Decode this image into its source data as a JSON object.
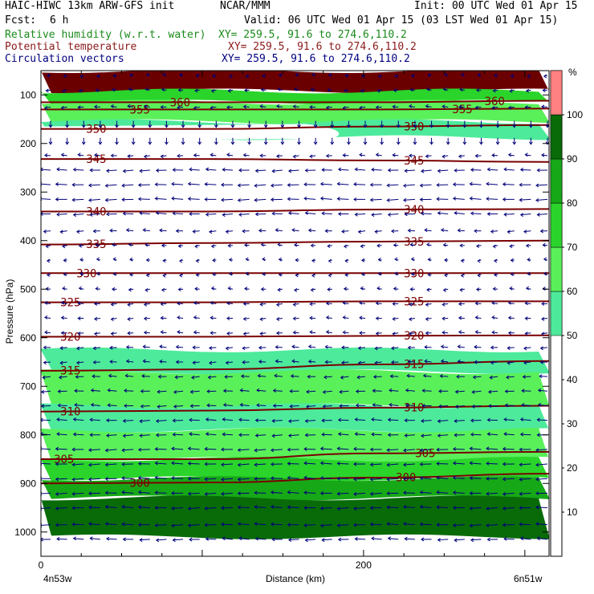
{
  "header": {
    "title_left": "HAIC-HIWC 13km ARW-GFS init",
    "center_org": "NCAR/MMM",
    "init": "Init: 00 UTC Wed 01 Apr 15",
    "fcst_label": "Fcst:",
    "fcst_value": "6 h",
    "valid": "Valid: 06 UTC Wed 01 Apr 15 (03 LST Wed 01 Apr 15)",
    "field1": "Relative humidity (w.r.t. water)",
    "field1_xy": "XY= 259.5, 91.6 to 274.6,110.2",
    "field2": "Potential temperature",
    "field2_xy": "XY= 259.5, 91.6 to 274.6,110.2",
    "field3": "Circulation vectors",
    "field3_xy": "XY= 259.5, 91.6 to 274.6,110.2"
  },
  "colors": {
    "field1": "#1a8a1a",
    "field2": "#8b1a1a",
    "field3": "#000080",
    "rh_50": "#4dea9b",
    "rh_60": "#5af05a",
    "rh_70": "#2ad42a",
    "rh_80": "#17a817",
    "rh_90": "#086b08",
    "rh_100": "#6b0000",
    "rh_over": "#ff8080",
    "theta": "#7a0000",
    "vectors": "#00007a"
  },
  "chart_data": {
    "type": "heatmap",
    "xlabel": "Distance (km)",
    "ylabel": "Pressure (hPa)",
    "xlim": [
      0,
      315
    ],
    "ylim": [
      1050,
      50
    ],
    "x_ticks": [
      0,
      200
    ],
    "y_ticks": [
      100,
      200,
      300,
      400,
      500,
      600,
      700,
      800,
      900,
      1000
    ],
    "x_left_label": "4n53w",
    "x_right_label": "6n51w",
    "colorbar": {
      "unit": "%",
      "ticks": [
        10,
        20,
        30,
        40,
        50,
        60,
        70,
        80,
        90,
        100
      ],
      "levels": [
        50,
        60,
        70,
        80,
        90,
        100
      ]
    },
    "rh_bands": [
      {
        "level": 100,
        "p_top": 50,
        "p_bot": 92
      },
      {
        "level": 70,
        "p_top": 92,
        "p_bot": 115
      },
      {
        "level": 60,
        "p_top": 115,
        "p_bot": 155
      },
      {
        "level": 50,
        "p_top": 155,
        "p_bot": 188
      },
      {
        "level": 50,
        "p_top": 625,
        "p_bot": 670
      },
      {
        "level": 60,
        "p_top": 670,
        "p_bot": 740
      },
      {
        "level": 50,
        "p_top": 740,
        "p_bot": 790
      },
      {
        "level": 60,
        "p_top": 790,
        "p_bot": 850
      },
      {
        "level": 70,
        "p_top": 850,
        "p_bot": 890
      },
      {
        "level": 80,
        "p_top": 890,
        "p_bot": 930
      },
      {
        "level": 90,
        "p_top": 930,
        "p_bot": 1010
      }
    ],
    "theta_contours": [
      {
        "value": 300,
        "y": [
          900,
          898,
          888,
          880
        ],
        "label": "300",
        "label_x": [
          55,
          220
        ]
      },
      {
        "value": 305,
        "y": [
          850,
          850,
          838,
          835
        ],
        "label": "305",
        "label_x": [
          8,
          232
        ]
      },
      {
        "value": 310,
        "y": [
          752,
          750,
          744,
          740
        ],
        "label": "310",
        "label_x": [
          12,
          225
        ]
      },
      {
        "value": 315,
        "y": [
          668,
          665,
          655,
          648
        ],
        "label": "315",
        "label_x": [
          12,
          225
        ]
      },
      {
        "value": 320,
        "y": [
          598,
          598,
          596,
          595
        ],
        "label": "320",
        "label_x": [
          12,
          225
        ]
      },
      {
        "value": 325,
        "y": [
          527,
          527,
          525,
          525
        ],
        "label": "325",
        "label_x": [
          12,
          225
        ]
      },
      {
        "value": 330,
        "y": [
          467,
          467,
          467,
          467
        ],
        "label": "330",
        "label_x": [
          22,
          225
        ]
      },
      {
        "value": 335,
        "y": [
          408,
          405,
          402,
          400
        ],
        "label": "335",
        "label_x": [
          28,
          225
        ]
      },
      {
        "value": 340,
        "y": [
          340,
          340,
          336,
          335
        ],
        "label": "340",
        "label_x": [
          28,
          225
        ]
      },
      {
        "value": 345,
        "y": [
          232,
          232,
          235,
          238
        ],
        "label": "345",
        "label_x": [
          28,
          225
        ]
      },
      {
        "value": 350,
        "y": [
          170,
          170,
          165,
          162
        ],
        "label": "350",
        "label_x": [
          28,
          225
        ]
      },
      {
        "value": 355,
        "y": [
          130,
          130,
          130,
          128
        ],
        "label": "355",
        "label_x": [
          55,
          255
        ]
      },
      {
        "value": 360,
        "y": [
          115,
          115,
          115,
          112
        ],
        "label": "360",
        "label_x": [
          80,
          275
        ]
      }
    ],
    "vector_rows_hpa": [
      60,
      90,
      125,
      160,
      195,
      225,
      255,
      285,
      315,
      345,
      380,
      410,
      440,
      470,
      500,
      530,
      560,
      590,
      620,
      650,
      680,
      710,
      740,
      770,
      800,
      830,
      860,
      890,
      920,
      950,
      985,
      1015
    ],
    "vector_u_by_row": [
      -0.3,
      -0.4,
      -0.5,
      -0.2,
      0.2,
      -0.5,
      -0.9,
      -1.0,
      -1.0,
      -0.9,
      -0.6,
      -0.4,
      -0.3,
      -0.3,
      -0.4,
      -0.5,
      -0.5,
      -0.5,
      -0.6,
      -0.6,
      -0.7,
      -0.8,
      -0.8,
      -0.9,
      -0.9,
      -1.0,
      -1.0,
      -1.0,
      -1.0,
      -1.0,
      -1.0,
      -0.9
    ]
  }
}
